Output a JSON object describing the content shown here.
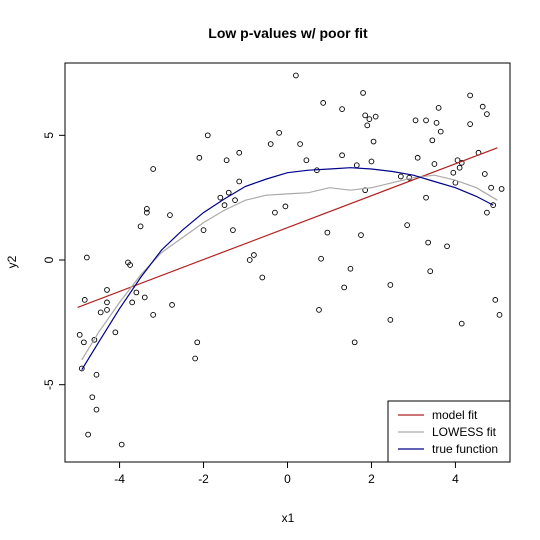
{
  "chart_data": {
    "type": "scatter",
    "title": "Low p-values w/ poor fit",
    "xlabel": "x1",
    "ylabel": "y2",
    "xlim": [
      -5.3,
      5.3
    ],
    "ylim": [
      -8.1,
      7.9
    ],
    "xticks": [
      -4,
      -2,
      0,
      2,
      4
    ],
    "yticks": [
      -5,
      0,
      5
    ],
    "grid": false,
    "legend_position": "bottom-right",
    "points": [
      [
        -4.95,
        -3.0
      ],
      [
        -4.9,
        -4.35
      ],
      [
        -4.85,
        -3.3
      ],
      [
        -4.83,
        -1.6
      ],
      [
        -4.78,
        0.1
      ],
      [
        -4.75,
        -7.0
      ],
      [
        -4.65,
        -5.5
      ],
      [
        -4.6,
        -3.2
      ],
      [
        -4.55,
        -6.0
      ],
      [
        -4.55,
        -4.6
      ],
      [
        -4.45,
        -2.1
      ],
      [
        -4.3,
        -1.2
      ],
      [
        -4.3,
        -1.7
      ],
      [
        -4.3,
        -2.0
      ],
      [
        -4.1,
        -2.9
      ],
      [
        -3.95,
        -7.4
      ],
      [
        -3.8,
        -0.1
      ],
      [
        -3.75,
        -0.2
      ],
      [
        -3.7,
        -1.7
      ],
      [
        -3.6,
        -1.3
      ],
      [
        -3.5,
        1.35
      ],
      [
        -3.4,
        -1.5
      ],
      [
        -3.35,
        1.9
      ],
      [
        -3.35,
        2.05
      ],
      [
        -3.2,
        3.65
      ],
      [
        -3.2,
        -2.2
      ],
      [
        -2.8,
        1.8
      ],
      [
        -2.75,
        -1.8
      ],
      [
        -2.1,
        4.1
      ],
      [
        -2.0,
        1.2
      ],
      [
        -1.9,
        5.0
      ],
      [
        -2.2,
        -3.95
      ],
      [
        -2.15,
        -3.3
      ],
      [
        -1.6,
        2.5
      ],
      [
        -1.5,
        2.2
      ],
      [
        -1.45,
        4.0
      ],
      [
        -1.4,
        2.7
      ],
      [
        -1.3,
        1.2
      ],
      [
        -1.25,
        2.4
      ],
      [
        -1.15,
        3.15
      ],
      [
        -1.15,
        4.3
      ],
      [
        -0.9,
        0.0
      ],
      [
        -0.8,
        0.2
      ],
      [
        -0.6,
        -0.7
      ],
      [
        -0.4,
        4.65
      ],
      [
        -0.3,
        1.9
      ],
      [
        -0.2,
        5.1
      ],
      [
        -0.05,
        2.15
      ],
      [
        0.2,
        7.4
      ],
      [
        0.3,
        4.65
      ],
      [
        0.45,
        4.0
      ],
      [
        0.7,
        3.6
      ],
      [
        0.75,
        -2.0
      ],
      [
        0.8,
        0.05
      ],
      [
        0.85,
        6.3
      ],
      [
        0.95,
        1.1
      ],
      [
        1.3,
        6.05
      ],
      [
        1.3,
        4.2
      ],
      [
        1.35,
        -1.1
      ],
      [
        1.5,
        -0.35
      ],
      [
        1.6,
        -3.3
      ],
      [
        1.65,
        3.8
      ],
      [
        1.75,
        1.0
      ],
      [
        1.8,
        6.7
      ],
      [
        1.85,
        2.8
      ],
      [
        1.85,
        5.8
      ],
      [
        1.9,
        5.4
      ],
      [
        1.95,
        5.65
      ],
      [
        2.0,
        3.95
      ],
      [
        2.05,
        4.75
      ],
      [
        2.1,
        5.75
      ],
      [
        2.45,
        -1.0
      ],
      [
        2.45,
        -2.4
      ],
      [
        2.7,
        3.35
      ],
      [
        2.85,
        1.4
      ],
      [
        2.9,
        3.3
      ],
      [
        3.05,
        5.6
      ],
      [
        3.1,
        4.1
      ],
      [
        3.3,
        2.5
      ],
      [
        3.3,
        5.6
      ],
      [
        3.35,
        0.7
      ],
      [
        3.4,
        -0.45
      ],
      [
        3.45,
        4.8
      ],
      [
        3.5,
        3.85
      ],
      [
        3.55,
        5.5
      ],
      [
        3.6,
        6.1
      ],
      [
        3.65,
        5.15
      ],
      [
        3.8,
        0.55
      ],
      [
        3.95,
        3.5
      ],
      [
        4.0,
        3.1
      ],
      [
        4.05,
        4.0
      ],
      [
        4.1,
        3.7
      ],
      [
        4.15,
        -2.55
      ],
      [
        4.15,
        3.9
      ],
      [
        4.35,
        5.45
      ],
      [
        4.35,
        6.6
      ],
      [
        4.55,
        4.3
      ],
      [
        4.65,
        6.15
      ],
      [
        4.7,
        3.45
      ],
      [
        4.75,
        1.9
      ],
      [
        4.75,
        5.85
      ],
      [
        4.85,
        2.9
      ],
      [
        4.9,
        2.2
      ],
      [
        4.95,
        -1.6
      ],
      [
        5.05,
        -2.2
      ],
      [
        5.1,
        2.85
      ]
    ],
    "series": [
      {
        "name": "model fit",
        "color": "#b22222",
        "x": [
          -5.0,
          5.0
        ],
        "y": [
          -1.9,
          4.5
        ]
      },
      {
        "name": "LOWESS fit",
        "color": "#aaaaaa",
        "x": [
          -4.9,
          -4.5,
          -4.0,
          -3.5,
          -3.0,
          -2.5,
          -2.0,
          -1.5,
          -1.0,
          -0.5,
          0.0,
          0.5,
          1.0,
          1.5,
          2.0,
          2.5,
          3.0,
          3.5,
          4.0,
          4.5,
          5.0
        ],
        "y": [
          -4.0,
          -2.9,
          -1.7,
          -0.6,
          0.3,
          0.9,
          1.5,
          2.0,
          2.4,
          2.6,
          2.65,
          2.7,
          2.9,
          2.8,
          2.9,
          3.1,
          3.3,
          3.4,
          3.2,
          2.9,
          2.4
        ]
      },
      {
        "name": "true function",
        "color": "#00008b",
        "x": [
          -4.9,
          -4.5,
          -4.0,
          -3.5,
          -3.0,
          -2.5,
          -2.0,
          -1.5,
          -1.0,
          -0.5,
          0.0,
          0.5,
          1.0,
          1.5,
          2.0,
          2.5,
          3.0,
          3.5,
          4.0,
          4.5,
          4.9
        ],
        "y": [
          -4.4,
          -3.3,
          -1.95,
          -0.7,
          0.4,
          1.2,
          1.9,
          2.45,
          2.95,
          3.25,
          3.5,
          3.6,
          3.65,
          3.7,
          3.65,
          3.55,
          3.4,
          3.15,
          2.9,
          2.55,
          2.2
        ]
      }
    ]
  }
}
